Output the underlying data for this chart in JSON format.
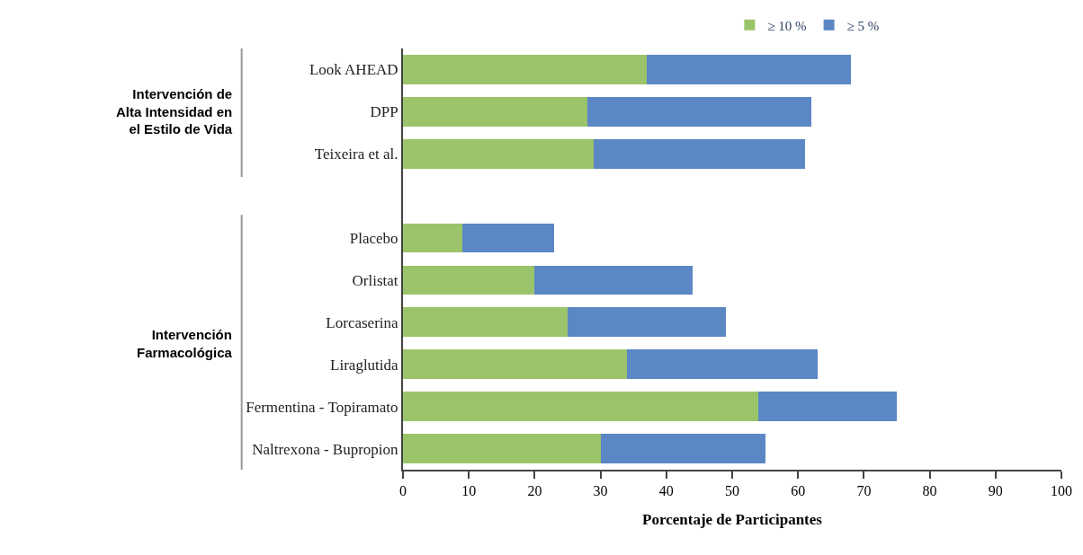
{
  "chart_data": {
    "type": "bar",
    "orientation": "horizontal",
    "stacked": true,
    "categories": [
      "Look AHEAD",
      "DPP",
      "Teixeira et al.",
      null,
      "Placebo",
      "Orlistat",
      "Lorcaserina",
      "Liraglutida",
      "Fermentina - Topiramato",
      "Naltrexona - Bupropion"
    ],
    "series": [
      {
        "name": "≥ 10 %",
        "color": "#9bc46a",
        "values": [
          37,
          28,
          29,
          null,
          9,
          20,
          25,
          34,
          54,
          30
        ]
      },
      {
        "name": "≥ 5 %",
        "color": "#5b87c5",
        "values": [
          31,
          34,
          32,
          null,
          14,
          24,
          24,
          29,
          21,
          25
        ]
      }
    ],
    "xlabel": "Porcentaje de Participantes",
    "xlim": [
      0,
      100
    ],
    "xticks": [
      0,
      10,
      20,
      30,
      40,
      50,
      60,
      70,
      80,
      90,
      100
    ],
    "annotations": [
      "Intervención de Alta Intensidad en el Estilo de Vida",
      "Intervención Farmacológica"
    ],
    "legend": "top right"
  }
}
